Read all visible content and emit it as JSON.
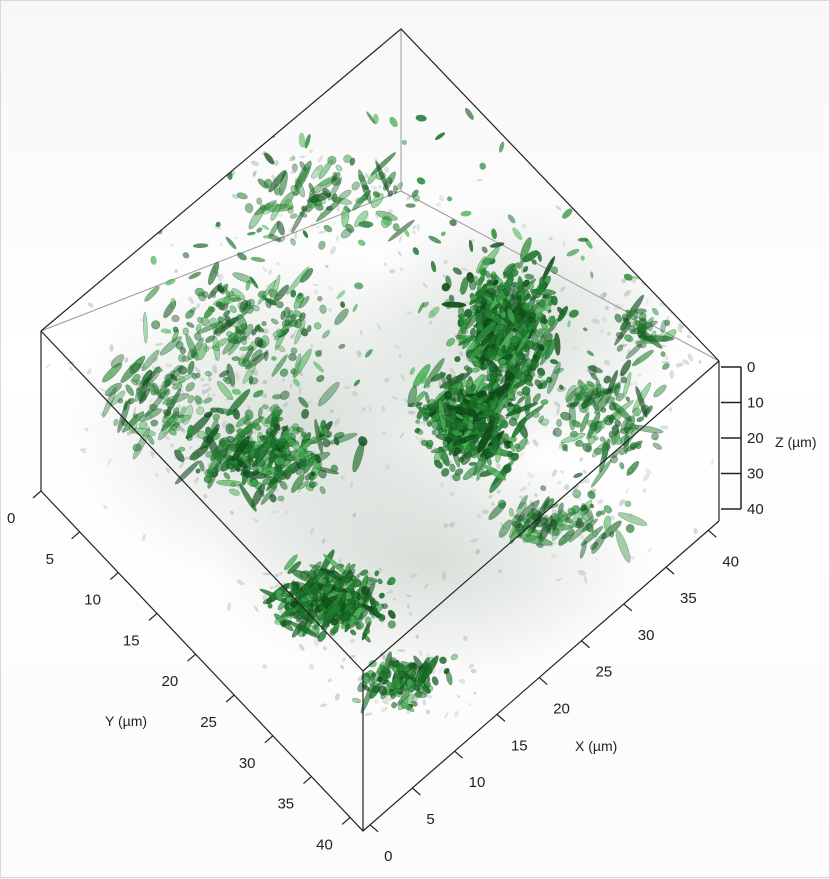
{
  "scene": {
    "description_free": true,
    "cells_color": "#1f7a2e",
    "cells_dark_color": "#0f4d1a",
    "cells_light_color": "#4fb35a",
    "haze_color": "#b9c4bb",
    "frame_color": "#222222"
  },
  "axes": {
    "x": {
      "title": "X (µm)",
      "ticks": [
        "0",
        "5",
        "10",
        "15",
        "20",
        "25",
        "30",
        "35",
        "40"
      ]
    },
    "y": {
      "title": "Y (µm)",
      "ticks": [
        "0",
        "5",
        "10",
        "15",
        "20",
        "25",
        "30",
        "35",
        "40"
      ]
    },
    "z": {
      "title": "Z (µm)",
      "ticks": [
        "0",
        "10",
        "20",
        "30",
        "40"
      ]
    }
  }
}
